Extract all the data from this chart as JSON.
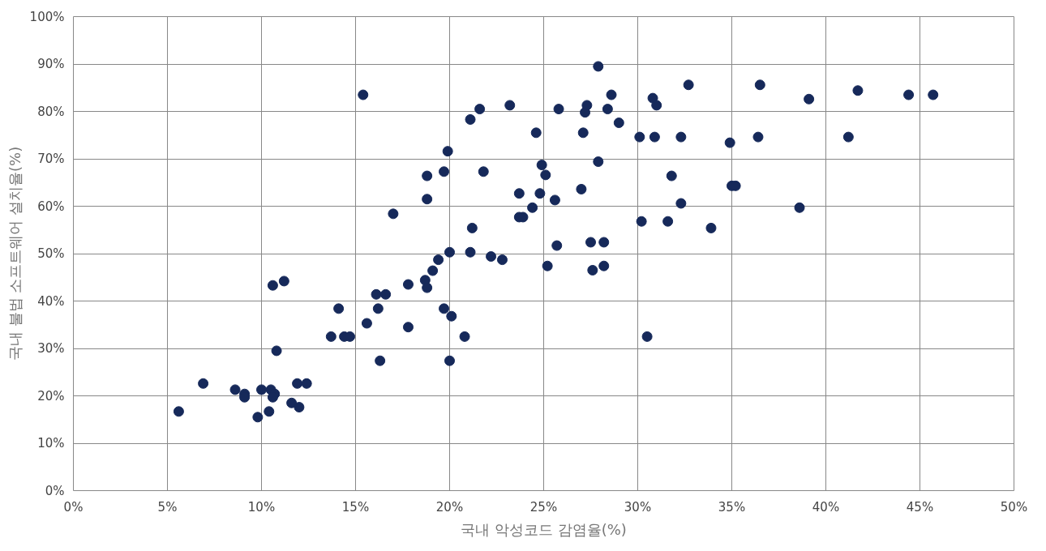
{
  "chart_data": {
    "type": "scatter",
    "xlabel": "국내 악성코드 감염율(%)",
    "ylabel": "국내 불법 소프트웨어 설치율(%)",
    "x": [
      5.6,
      6.9,
      8.6,
      9.1,
      9.1,
      9.8,
      10.0,
      10.4,
      10.5,
      10.7,
      10.6,
      10.6,
      10.8,
      11.2,
      11.6,
      11.9,
      12.0,
      12.4,
      13.7,
      14.1,
      14.4,
      14.7,
      15.4,
      15.6,
      16.1,
      16.2,
      16.3,
      16.6,
      17.0,
      17.8,
      17.8,
      18.7,
      18.8,
      18.8,
      18.8,
      19.1,
      19.4,
      19.7,
      19.7,
      19.9,
      20.0,
      20.0,
      20.1,
      20.8,
      21.1,
      21.1,
      21.2,
      21.6,
      21.8,
      22.2,
      22.8,
      23.2,
      23.7,
      23.7,
      23.9,
      24.4,
      24.6,
      24.8,
      24.9,
      25.1,
      25.2,
      25.6,
      25.7,
      25.8,
      27.0,
      27.1,
      27.2,
      27.3,
      27.5,
      27.6,
      27.9,
      27.9,
      28.2,
      28.2,
      28.4,
      28.6,
      29.0,
      30.1,
      30.2,
      30.5,
      30.8,
      31.0,
      30.9,
      31.6,
      31.8,
      32.3,
      32.3,
      32.7,
      33.9,
      34.9,
      35.0,
      35.2,
      36.4,
      36.5,
      38.6,
      39.1,
      41.2,
      41.7,
      44.4,
      45.7
    ],
    "values": [
      16.7,
      22.6,
      21.3,
      20.4,
      19.7,
      15.5,
      21.3,
      16.7,
      21.3,
      20.4,
      19.7,
      43.3,
      29.5,
      44.2,
      18.5,
      22.6,
      17.6,
      22.6,
      32.5,
      38.4,
      32.5,
      32.5,
      83.5,
      35.3,
      41.4,
      38.4,
      27.4,
      41.4,
      58.4,
      43.5,
      34.5,
      44.4,
      42.8,
      66.4,
      61.5,
      46.4,
      48.7,
      67.3,
      38.4,
      71.6,
      50.3,
      27.4,
      36.8,
      32.5,
      50.3,
      78.3,
      55.4,
      80.5,
      67.3,
      49.4,
      48.7,
      81.3,
      62.7,
      57.7,
      57.7,
      59.7,
      75.5,
      62.7,
      68.7,
      66.6,
      47.4,
      61.3,
      51.7,
      80.5,
      63.6,
      75.5,
      79.8,
      81.3,
      52.4,
      46.5,
      89.5,
      69.4,
      52.4,
      47.4,
      80.5,
      83.5,
      77.6,
      74.6,
      56.8,
      32.5,
      82.8,
      81.3,
      74.6,
      56.8,
      66.4,
      74.6,
      60.6,
      85.6,
      55.4,
      73.4,
      64.3,
      64.3,
      74.6,
      85.6,
      59.7,
      82.6,
      74.6,
      84.4,
      83.5,
      83.5
    ],
    "color": "#16295a",
    "marker": "circle",
    "grid": true,
    "xlim": [
      0,
      50
    ],
    "xticks": [
      {
        "value": 0,
        "label": "0%"
      },
      {
        "value": 5,
        "label": "5%"
      },
      {
        "value": 10,
        "label": "10%"
      },
      {
        "value": 15,
        "label": "15%"
      },
      {
        "value": 20,
        "label": "20%"
      },
      {
        "value": 25,
        "label": "25%"
      },
      {
        "value": 30,
        "label": "30%"
      },
      {
        "value": 35,
        "label": "35%"
      },
      {
        "value": 40,
        "label": "40%"
      },
      {
        "value": 45,
        "label": "45%"
      },
      {
        "value": 50,
        "label": "50%"
      }
    ],
    "ylim": [
      0,
      100
    ],
    "yticks": [
      {
        "value": 0,
        "label": "0%"
      },
      {
        "value": 10,
        "label": "10%"
      },
      {
        "value": 20,
        "label": "20%"
      },
      {
        "value": 30,
        "label": "30%"
      },
      {
        "value": 40,
        "label": "40%"
      },
      {
        "value": 50,
        "label": "50%"
      },
      {
        "value": 60,
        "label": "60%"
      },
      {
        "value": 70,
        "label": "70%"
      },
      {
        "value": 80,
        "label": "80%"
      },
      {
        "value": 90,
        "label": "90%"
      },
      {
        "value": 100,
        "label": "100%"
      }
    ]
  }
}
